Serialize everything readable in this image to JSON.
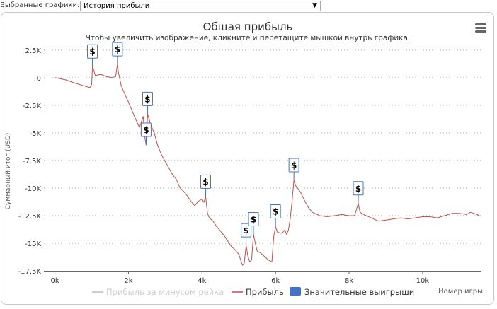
{
  "selector": {
    "label": "Выбранные графики:",
    "selected": "История прибыли"
  },
  "chart_data": {
    "type": "line",
    "title": "Общая прибыль",
    "subtitle": "Чтобы увеличить изображение, кликните и перетащите мышкой внутрь графика.",
    "xlabel": "Номер игры",
    "ylabel": "Суммарный итог (USD)",
    "xlim": [
      -300,
      11600
    ],
    "ylim": [
      -17500,
      3000
    ],
    "x_ticks": [
      0,
      2000,
      4000,
      6000,
      8000,
      10000
    ],
    "x_tick_labels": [
      "0k",
      "2k",
      "4k",
      "6k",
      "8k",
      "10k"
    ],
    "y_ticks": [
      2500,
      0,
      -2500,
      -5000,
      -7500,
      -10000,
      -12500,
      -15000,
      -17500
    ],
    "y_tick_labels": [
      "2.5K",
      "0",
      "-2.5K",
      "-5K",
      "-7.5K",
      "-10K",
      "-12.5K",
      "-15K",
      "-17.5K"
    ],
    "grid": true,
    "legend_position": "bottom",
    "series": [
      {
        "name": "Прибыль за минусом рейка",
        "color": "#cccccc",
        "visible": false,
        "x": [],
        "y": []
      },
      {
        "name": "Прибыль",
        "color": "#c0504d",
        "x": [
          0,
          300,
          550,
          750,
          950,
          1000,
          1020,
          1100,
          1250,
          1400,
          1550,
          1650,
          1700,
          1720,
          1800,
          1900,
          2000,
          2100,
          2200,
          2300,
          2400,
          2450,
          2480,
          2520,
          2600,
          2700,
          2800,
          2900,
          3000,
          3100,
          3200,
          3300,
          3400,
          3500,
          3600,
          3700,
          3800,
          3900,
          4000,
          4050,
          4100,
          4150,
          4200,
          4300,
          4400,
          4500,
          4600,
          4700,
          4800,
          4900,
          5000,
          5100,
          5150,
          5200,
          5250,
          5300,
          5350,
          5400,
          5450,
          5500,
          5600,
          5700,
          5800,
          5900,
          5950,
          6000,
          6050,
          6150,
          6200,
          6250,
          6300,
          6350,
          6400,
          6450,
          6500,
          6550,
          6600,
          6700,
          6800,
          6900,
          7000,
          7200,
          7400,
          7600,
          7800,
          8000,
          8150,
          8250,
          8300,
          8400,
          8600,
          8800,
          9000,
          9200,
          9400,
          9600,
          9800,
          10000,
          10200,
          10400,
          10600,
          10800,
          11000,
          11200,
          11300,
          11400,
          11550
        ],
        "y": [
          0,
          -200,
          -500,
          -700,
          -900,
          -600,
          1000,
          200,
          300,
          100,
          0,
          100,
          1200,
          600,
          -700,
          -1500,
          -2200,
          -3000,
          -3800,
          -4500,
          -3500,
          -5500,
          -6100,
          -3300,
          -4200,
          -5000,
          -6200,
          -7000,
          -7600,
          -8200,
          -8800,
          -9200,
          -10000,
          -10300,
          -10700,
          -11200,
          -11600,
          -11200,
          -11000,
          -11300,
          -10800,
          -12300,
          -12700,
          -13000,
          -13500,
          -13900,
          -14300,
          -14800,
          -15300,
          -15600,
          -16000,
          -17000,
          -16800,
          -15200,
          -16200,
          -16700,
          -16500,
          -14200,
          -15000,
          -15700,
          -15900,
          -16200,
          -16500,
          -16700,
          -14400,
          -13500,
          -14000,
          -14100,
          -14000,
          -13800,
          -14200,
          -13800,
          -12800,
          -11200,
          -9300,
          -9800,
          -10000,
          -10500,
          -11200,
          -11800,
          -12200,
          -12500,
          -12600,
          -12500,
          -12400,
          -12500,
          -12500,
          -11400,
          -12200,
          -12400,
          -12700,
          -13000,
          -12900,
          -12800,
          -12700,
          -12800,
          -12700,
          -12600,
          -12600,
          -12700,
          -12500,
          -12300,
          -12300,
          -12400,
          -12200,
          -12300,
          -12500
        ]
      }
    ],
    "markers": {
      "name": "Значительные выигрыши",
      "color": "#4572c4",
      "symbol": "$",
      "points": [
        {
          "x": 1020,
          "y": 1000
        },
        {
          "x": 1700,
          "y": 1200
        },
        {
          "x": 2520,
          "y": -3300
        },
        {
          "x": 2480,
          "y": -6100
        },
        {
          "x": 4100,
          "y": -10800
        },
        {
          "x": 5200,
          "y": -15200
        },
        {
          "x": 5400,
          "y": -14200
        },
        {
          "x": 6000,
          "y": -13500
        },
        {
          "x": 6500,
          "y": -9300
        },
        {
          "x": 8250,
          "y": -11400
        }
      ]
    }
  },
  "icons": {
    "menu": "hamburger-menu-icon"
  }
}
